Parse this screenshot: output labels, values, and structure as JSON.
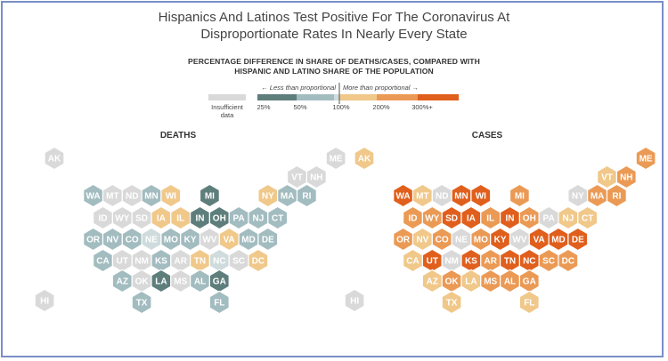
{
  "title": {
    "line1": "Hispanics And Latinos Test Positive For The Coronavirus At",
    "line2": "Disproportionate Rates In Nearly Every State"
  },
  "legend": {
    "title_line1": "PERCENTAGE DIFFERENCE IN SHARE OF DEATHS/CASES, COMPARED WITH",
    "title_line2": "HISPANIC AND LATINO SHARE OF THE POPULATION",
    "less_label": "← Less than proportional",
    "more_label": "More than proportional →",
    "insufficient_line1": "Insufficient",
    "insufficient_line2": "data",
    "ticks": [
      "25%",
      "50%",
      "100%",
      "200%",
      "300%+"
    ],
    "colors": {
      "insufficient": "#d9d9d9",
      "c1": "#5e7e7c",
      "c2": "#a2bcc0",
      "c3": "#cfdbdc",
      "c4": "#f0c88a",
      "c5": "#eb9a55",
      "c6": "#e05f1c"
    }
  },
  "chart_data": [
    {
      "type": "heatmap",
      "title": "DEATHS",
      "states": [
        {
          "s": "AK",
          "c": "na"
        },
        {
          "s": "ME",
          "c": "na"
        },
        {
          "s": "VT",
          "c": "na"
        },
        {
          "s": "NH",
          "c": "na"
        },
        {
          "s": "WA",
          "c": "c2"
        },
        {
          "s": "MT",
          "c": "na"
        },
        {
          "s": "ND",
          "c": "na"
        },
        {
          "s": "MN",
          "c": "c2"
        },
        {
          "s": "WI",
          "c": "c4"
        },
        {
          "s": "MI",
          "c": "c1"
        },
        {
          "s": "NY",
          "c": "c4"
        },
        {
          "s": "MA",
          "c": "c2"
        },
        {
          "s": "RI",
          "c": "c2"
        },
        {
          "s": "ID",
          "c": "na"
        },
        {
          "s": "WY",
          "c": "na"
        },
        {
          "s": "SD",
          "c": "na"
        },
        {
          "s": "IA",
          "c": "c4"
        },
        {
          "s": "IL",
          "c": "c4"
        },
        {
          "s": "IN",
          "c": "c1"
        },
        {
          "s": "OH",
          "c": "c1"
        },
        {
          "s": "PA",
          "c": "c2"
        },
        {
          "s": "NJ",
          "c": "c2"
        },
        {
          "s": "CT",
          "c": "c2"
        },
        {
          "s": "OR",
          "c": "c2"
        },
        {
          "s": "NV",
          "c": "c2"
        },
        {
          "s": "CO",
          "c": "c2"
        },
        {
          "s": "NE",
          "c": "c3"
        },
        {
          "s": "MO",
          "c": "c2"
        },
        {
          "s": "KY",
          "c": "c2"
        },
        {
          "s": "WV",
          "c": "na"
        },
        {
          "s": "VA",
          "c": "c4"
        },
        {
          "s": "MD",
          "c": "c2"
        },
        {
          "s": "DE",
          "c": "c2"
        },
        {
          "s": "CA",
          "c": "c2"
        },
        {
          "s": "UT",
          "c": "na"
        },
        {
          "s": "NM",
          "c": "na"
        },
        {
          "s": "KS",
          "c": "c2"
        },
        {
          "s": "AR",
          "c": "na"
        },
        {
          "s": "TN",
          "c": "c4"
        },
        {
          "s": "NC",
          "c": "c3"
        },
        {
          "s": "SC",
          "c": "na"
        },
        {
          "s": "DC",
          "c": "c4"
        },
        {
          "s": "AZ",
          "c": "c2"
        },
        {
          "s": "OK",
          "c": "na"
        },
        {
          "s": "LA",
          "c": "c1"
        },
        {
          "s": "MS",
          "c": "na"
        },
        {
          "s": "AL",
          "c": "c2"
        },
        {
          "s": "GA",
          "c": "c1"
        },
        {
          "s": "HI",
          "c": "na"
        },
        {
          "s": "TX",
          "c": "c2"
        },
        {
          "s": "FL",
          "c": "c2"
        }
      ]
    },
    {
      "type": "heatmap",
      "title": "CASES",
      "states": [
        {
          "s": "AK",
          "c": "c4"
        },
        {
          "s": "ME",
          "c": "c5"
        },
        {
          "s": "VT",
          "c": "c4"
        },
        {
          "s": "NH",
          "c": "c5"
        },
        {
          "s": "WA",
          "c": "c6"
        },
        {
          "s": "MT",
          "c": "c4"
        },
        {
          "s": "ND",
          "c": "na"
        },
        {
          "s": "MN",
          "c": "c6"
        },
        {
          "s": "WI",
          "c": "c6"
        },
        {
          "s": "MI",
          "c": "c5"
        },
        {
          "s": "NY",
          "c": "na"
        },
        {
          "s": "MA",
          "c": "c5"
        },
        {
          "s": "RI",
          "c": "c5"
        },
        {
          "s": "ID",
          "c": "c5"
        },
        {
          "s": "WY",
          "c": "c5"
        },
        {
          "s": "SD",
          "c": "c6"
        },
        {
          "s": "IA",
          "c": "c6"
        },
        {
          "s": "IL",
          "c": "c5"
        },
        {
          "s": "IN",
          "c": "c6"
        },
        {
          "s": "OH",
          "c": "c5"
        },
        {
          "s": "PA",
          "c": "na"
        },
        {
          "s": "NJ",
          "c": "c4"
        },
        {
          "s": "CT",
          "c": "c4"
        },
        {
          "s": "OR",
          "c": "c5"
        },
        {
          "s": "NV",
          "c": "c4"
        },
        {
          "s": "CO",
          "c": "c5"
        },
        {
          "s": "NE",
          "c": "na"
        },
        {
          "s": "MO",
          "c": "c5"
        },
        {
          "s": "KY",
          "c": "c6"
        },
        {
          "s": "WV",
          "c": "na"
        },
        {
          "s": "VA",
          "c": "c6"
        },
        {
          "s": "MD",
          "c": "c6"
        },
        {
          "s": "DE",
          "c": "c6"
        },
        {
          "s": "CA",
          "c": "c4"
        },
        {
          "s": "UT",
          "c": "c6"
        },
        {
          "s": "NM",
          "c": "na"
        },
        {
          "s": "KS",
          "c": "c6"
        },
        {
          "s": "AR",
          "c": "c5"
        },
        {
          "s": "TN",
          "c": "c6"
        },
        {
          "s": "NC",
          "c": "c6"
        },
        {
          "s": "SC",
          "c": "c5"
        },
        {
          "s": "DC",
          "c": "c5"
        },
        {
          "s": "AZ",
          "c": "c4"
        },
        {
          "s": "OK",
          "c": "c5"
        },
        {
          "s": "LA",
          "c": "c4"
        },
        {
          "s": "MS",
          "c": "c5"
        },
        {
          "s": "AL",
          "c": "c5"
        },
        {
          "s": "GA",
          "c": "c5"
        },
        {
          "s": "HI",
          "c": "na"
        },
        {
          "s": "TX",
          "c": "c4"
        },
        {
          "s": "FL",
          "c": "c4"
        }
      ]
    }
  ]
}
